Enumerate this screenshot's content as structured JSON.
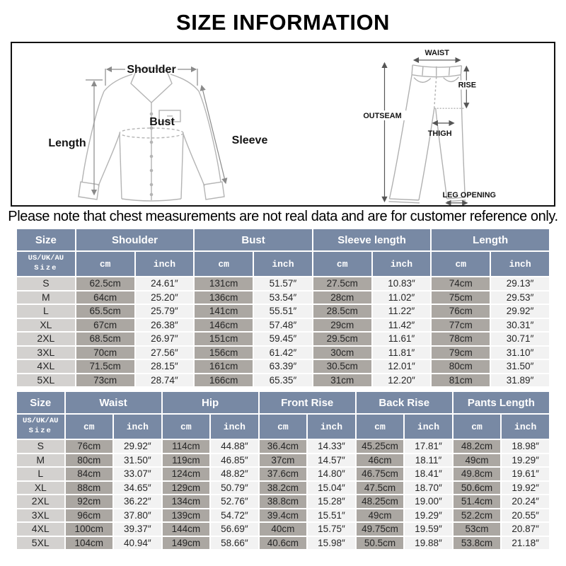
{
  "title": "SIZE INFORMATION",
  "note": "Please note that chest measurements are not real data and are for customer reference only.",
  "colors": {
    "header_bg": "#7889a4",
    "cm_cell_bg": "#aba7a2",
    "inch_cell_bg": "#f2f2f2",
    "size_cell_bg": "#d3d1cf"
  },
  "diagram": {
    "shirt": {
      "shoulder": "Shoulder",
      "length": "Length",
      "bust": "Bust",
      "sleeve": "Sleeve"
    },
    "pants": {
      "waist": "WAIST",
      "rise": "RISE",
      "outseam": "OUTSEAM",
      "thigh": "THIGH",
      "leg_opening": "LEG OPENING"
    }
  },
  "tables": [
    {
      "size_header": "Size",
      "sub_size_line1": "US/UK/AU",
      "sub_size_line2": "Size",
      "unit_cm": "cm",
      "unit_inch": "inch",
      "groups": [
        "Shoulder",
        "Bust",
        "Sleeve length",
        "Length"
      ],
      "rows": [
        [
          "S",
          "62.5cm",
          "24.61″",
          "131cm",
          "51.57″",
          "27.5cm",
          "10.83″",
          "74cm",
          "29.13″"
        ],
        [
          "M",
          "64cm",
          "25.20″",
          "136cm",
          "53.54″",
          "28cm",
          "11.02″",
          "75cm",
          "29.53″"
        ],
        [
          "L",
          "65.5cm",
          "25.79″",
          "141cm",
          "55.51″",
          "28.5cm",
          "11.22″",
          "76cm",
          "29.92″"
        ],
        [
          "XL",
          "67cm",
          "26.38″",
          "146cm",
          "57.48″",
          "29cm",
          "11.42″",
          "77cm",
          "30.31″"
        ],
        [
          "2XL",
          "68.5cm",
          "26.97″",
          "151cm",
          "59.45″",
          "29.5cm",
          "11.61″",
          "78cm",
          "30.71″"
        ],
        [
          "3XL",
          "70cm",
          "27.56″",
          "156cm",
          "61.42″",
          "30cm",
          "11.81″",
          "79cm",
          "31.10″"
        ],
        [
          "4XL",
          "71.5cm",
          "28.15″",
          "161cm",
          "63.39″",
          "30.5cm",
          "12.01″",
          "80cm",
          "31.50″"
        ],
        [
          "5XL",
          "73cm",
          "28.74″",
          "166cm",
          "65.35″",
          "31cm",
          "12.20″",
          "81cm",
          "31.89″"
        ]
      ]
    },
    {
      "size_header": "Size",
      "sub_size_line1": "US/UK/AU",
      "sub_size_line2": "Size",
      "unit_cm": "cm",
      "unit_inch": "inch",
      "groups": [
        "Waist",
        "Hip",
        "Front Rise",
        "Back Rise",
        "Pants Length"
      ],
      "rows": [
        [
          "S",
          "76cm",
          "29.92″",
          "114cm",
          "44.88″",
          "36.4cm",
          "14.33″",
          "45.25cm",
          "17.81″",
          "48.2cm",
          "18.98″"
        ],
        [
          "M",
          "80cm",
          "31.50″",
          "119cm",
          "46.85″",
          "37cm",
          "14.57″",
          "46cm",
          "18.11″",
          "49cm",
          "19.29″"
        ],
        [
          "L",
          "84cm",
          "33.07″",
          "124cm",
          "48.82″",
          "37.6cm",
          "14.80″",
          "46.75cm",
          "18.41″",
          "49.8cm",
          "19.61″"
        ],
        [
          "XL",
          "88cm",
          "34.65″",
          "129cm",
          "50.79″",
          "38.2cm",
          "15.04″",
          "47.5cm",
          "18.70″",
          "50.6cm",
          "19.92″"
        ],
        [
          "2XL",
          "92cm",
          "36.22″",
          "134cm",
          "52.76″",
          "38.8cm",
          "15.28″",
          "48.25cm",
          "19.00″",
          "51.4cm",
          "20.24″"
        ],
        [
          "3XL",
          "96cm",
          "37.80″",
          "139cm",
          "54.72″",
          "39.4cm",
          "15.51″",
          "49cm",
          "19.29″",
          "52.2cm",
          "20.55″"
        ],
        [
          "4XL",
          "100cm",
          "39.37″",
          "144cm",
          "56.69″",
          "40cm",
          "15.75″",
          "49.75cm",
          "19.59″",
          "53cm",
          "20.87″"
        ],
        [
          "5XL",
          "104cm",
          "40.94″",
          "149cm",
          "58.66″",
          "40.6cm",
          "15.98″",
          "50.5cm",
          "19.88″",
          "53.8cm",
          "21.18″"
        ]
      ]
    }
  ]
}
